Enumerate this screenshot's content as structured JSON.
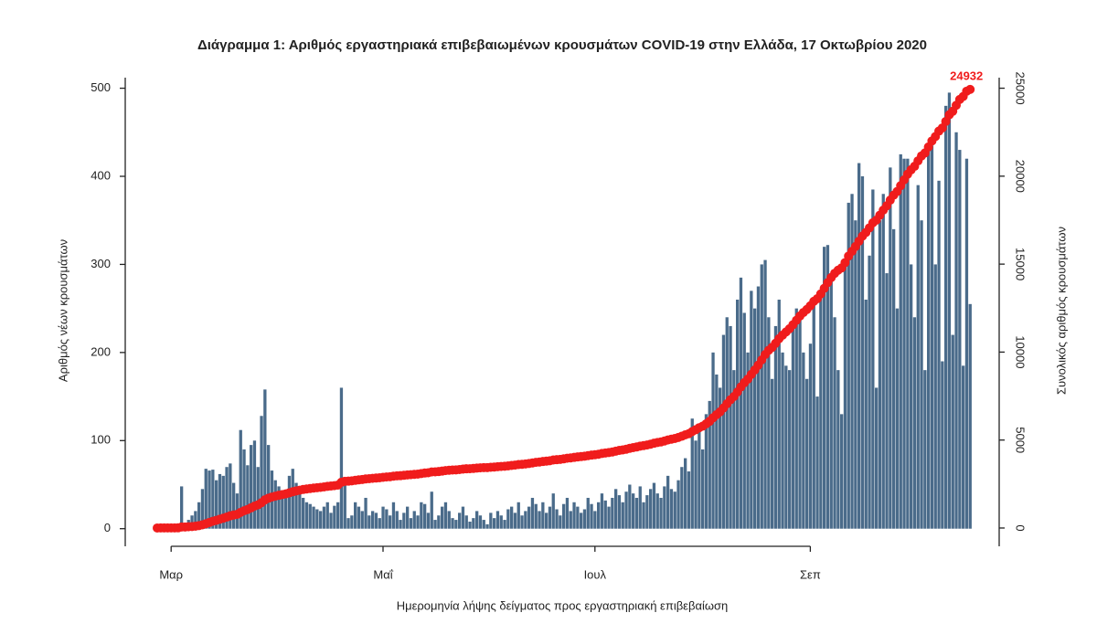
{
  "chart_data": {
    "type": "bar",
    "title": "Διάγραμμα 1: Αριθμός εργαστηριακά επιβεβαιωμένων κρουσμάτων COVID-19 στην Ελλάδα, 17 Οκτωβρίου 2020",
    "x_label": "Ημερομηνία λήψης δείγματος προς εργαστηριακή επιβεβαίωση",
    "y_label": "Αριθμός νέων κρουσμάτων",
    "y2_label": "Συνολικός αριθμός κρουσμάτων",
    "categories": [
      null,
      null,
      null,
      null,
      "Μαρ",
      null,
      null,
      null,
      null,
      null,
      null,
      null,
      null,
      null,
      null,
      null,
      null,
      null,
      null,
      null,
      null,
      null,
      null,
      null,
      null,
      null,
      null,
      null,
      null,
      null,
      null,
      null,
      null,
      null,
      null,
      null,
      null,
      null,
      null,
      null,
      null,
      null,
      null,
      null,
      null,
      null,
      null,
      null,
      null,
      null,
      null,
      null,
      null,
      null,
      null,
      null,
      null,
      null,
      null,
      null,
      null,
      null,
      null,
      null,
      null,
      "Μαΐ",
      null,
      null,
      null,
      null,
      null,
      null,
      null,
      null,
      null,
      null,
      null,
      null,
      null,
      null,
      null,
      null,
      null,
      null,
      null,
      null,
      null,
      null,
      null,
      null,
      null,
      null,
      null,
      null,
      null,
      null,
      null,
      null,
      null,
      null,
      null,
      null,
      null,
      null,
      null,
      null,
      null,
      null,
      null,
      null,
      null,
      null,
      null,
      null,
      null,
      null,
      null,
      null,
      null,
      null,
      null,
      null,
      null,
      null,
      null,
      null,
      "Ιουλ",
      null,
      null,
      null,
      null,
      null,
      null,
      null,
      null,
      null,
      null,
      null,
      null,
      null,
      null,
      null,
      null,
      null,
      null,
      null,
      null,
      null,
      null,
      null,
      null,
      null,
      null,
      null,
      null,
      null,
      null,
      null,
      null,
      null,
      null,
      null,
      null,
      null,
      null,
      null,
      null,
      null,
      null,
      null,
      null,
      null,
      null,
      null,
      null,
      null,
      null,
      null,
      null,
      null,
      null,
      null,
      null,
      null,
      null,
      null,
      null,
      null,
      "Σεπ",
      null,
      null,
      null,
      null,
      null,
      null,
      null,
      null,
      null,
      null,
      null,
      null,
      null,
      null,
      null,
      null,
      null,
      null,
      null,
      null,
      null,
      null,
      null,
      null,
      null,
      null,
      null,
      null,
      null,
      null,
      null,
      null,
      null,
      null,
      null,
      null,
      null,
      null,
      null,
      null,
      null,
      null,
      null,
      null,
      null,
      null
    ],
    "series": [
      {
        "type": "bar",
        "color": "#4a6b8a",
        "values": [
          1,
          1,
          1,
          1,
          2,
          1,
          3,
          48,
          2,
          10,
          15,
          20,
          30,
          45,
          68,
          66,
          67,
          55,
          62,
          60,
          70,
          74,
          52,
          40,
          112,
          90,
          72,
          95,
          100,
          70,
          128,
          158,
          95,
          66,
          55,
          48,
          42,
          38,
          60,
          68,
          52,
          40,
          35,
          30,
          28,
          25,
          22,
          20,
          25,
          30,
          18,
          26,
          30,
          160,
          55,
          12,
          15,
          30,
          25,
          20,
          35,
          15,
          20,
          18,
          12,
          25,
          22,
          15,
          30,
          20,
          10,
          18,
          25,
          12,
          20,
          15,
          30,
          28,
          18,
          42,
          10,
          15,
          25,
          30,
          20,
          12,
          10,
          18,
          25,
          15,
          8,
          12,
          20,
          15,
          10,
          5,
          18,
          12,
          20,
          15,
          10,
          22,
          25,
          18,
          30,
          15,
          20,
          25,
          35,
          28,
          20,
          30,
          18,
          25,
          40,
          22,
          15,
          28,
          35,
          20,
          30,
          25,
          18,
          22,
          35,
          28,
          20,
          30,
          40,
          32,
          25,
          35,
          45,
          38,
          30,
          42,
          50,
          40,
          35,
          48,
          30,
          38,
          45,
          52,
          40,
          35,
          48,
          60,
          45,
          42,
          55,
          70,
          80,
          65,
          125,
          100,
          115,
          90,
          130,
          145,
          200,
          175,
          160,
          220,
          240,
          230,
          180,
          260,
          285,
          245,
          200,
          270,
          250,
          275,
          300,
          305,
          240,
          170,
          230,
          260,
          200,
          185,
          180,
          230,
          250,
          245,
          200,
          170,
          210,
          255,
          150,
          270,
          320,
          322,
          290,
          240,
          180,
          130,
          300,
          370,
          380,
          350,
          415,
          400,
          260,
          310,
          385,
          160,
          350,
          380,
          290,
          410,
          340,
          250,
          425,
          420,
          420,
          300,
          240,
          390,
          350,
          180,
          430,
          435,
          300,
          395,
          190,
          480,
          495,
          220,
          450,
          430,
          185,
          420,
          255
        ]
      },
      {
        "type": "line",
        "axis": "y2",
        "color": "#f01c1c",
        "values": [
          1,
          2,
          3,
          4,
          6,
          7,
          10,
          58,
          60,
          70,
          85,
          105,
          135,
          180,
          248,
          314,
          381,
          436,
          498,
          558,
          620,
          690,
          740,
          780,
          890,
          980,
          1050,
          1145,
          1245,
          1315,
          1440,
          1600,
          1690,
          1760,
          1810,
          1860,
          1900,
          1940,
          2000,
          2060,
          2110,
          2150,
          2190,
          2220,
          2245,
          2270,
          2290,
          2310,
          2335,
          2365,
          2385,
          2410,
          2440,
          2600,
          2655,
          2665,
          2680,
          2710,
          2735,
          2755,
          2790,
          2805,
          2825,
          2840,
          2855,
          2880,
          2900,
          2915,
          2945,
          2965,
          2975,
          2995,
          3020,
          3030,
          3050,
          3065,
          3095,
          3125,
          3140,
          3185,
          3195,
          3210,
          3235,
          3265,
          3285,
          3295,
          3305,
          3325,
          3350,
          3365,
          3370,
          3385,
          3405,
          3420,
          3430,
          3435,
          3455,
          3465,
          3485,
          3500,
          3510,
          3530,
          3555,
          3575,
          3605,
          3620,
          3640,
          3665,
          3700,
          3730,
          3750,
          3780,
          3800,
          3825,
          3865,
          3885,
          3900,
          3930,
          3965,
          3985,
          4015,
          4040,
          4060,
          4080,
          4115,
          4145,
          4165,
          4195,
          4235,
          4265,
          4290,
          4325,
          4370,
          4410,
          4440,
          4480,
          4530,
          4570,
          4605,
          4655,
          4685,
          4720,
          4765,
          4820,
          4860,
          4895,
          4945,
          5005,
          5050,
          5090,
          5145,
          5215,
          5295,
          5360,
          5485,
          5585,
          5700,
          5790,
          5920,
          6065,
          6265,
          6440,
          6600,
          6820,
          7060,
          7290,
          7470,
          7730,
          8015,
          8260,
          8460,
          8730,
          8980,
          9255,
          9555,
          9860,
          10100,
          10270,
          10500,
          10760,
          10960,
          11145,
          11325,
          11555,
          11805,
          12050,
          12250,
          12420,
          12630,
          12885,
          13035,
          13305,
          13625,
          13947,
          14237,
          14477,
          14657,
          14787,
          15087,
          15457,
          15730,
          16000,
          16300,
          16590,
          16800,
          17060,
          17350,
          17500,
          17780,
          18070,
          18320,
          18640,
          18920,
          19130,
          19460,
          19790,
          20110,
          20360,
          20560,
          20870,
          21150,
          21320,
          21660,
          22000,
          22250,
          22560,
          22740,
          23110,
          23490,
          23690,
          24030,
          24360,
          24530,
          24830,
          24932
        ]
      }
    ],
    "ylim": [
      -20,
      512
    ],
    "yticks": [
      0,
      100,
      200,
      300,
      400,
      500
    ],
    "y2lim": [
      -1040,
      25600
    ],
    "y2ticks": [
      0,
      5000,
      10000,
      15000,
      20000,
      25000
    ],
    "grid": false
  }
}
